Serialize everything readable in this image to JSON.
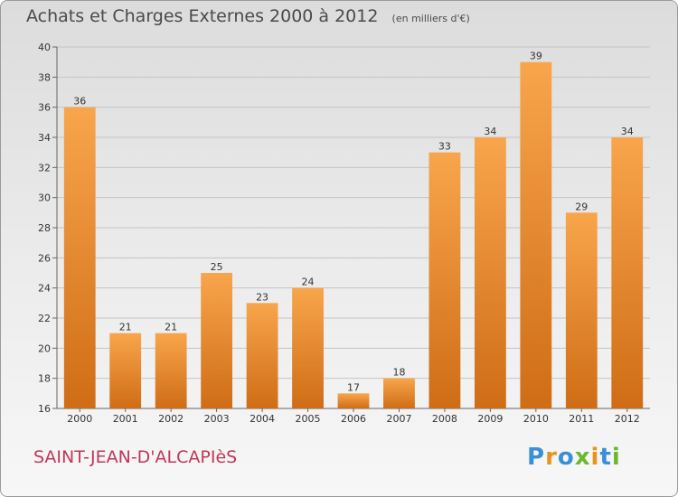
{
  "chart_data": {
    "type": "bar",
    "title": "Achats et Charges Externes 2000 à 2012",
    "unit": "(en milliers d'€)",
    "categories": [
      "2000",
      "2001",
      "2002",
      "2003",
      "2004",
      "2005",
      "2006",
      "2007",
      "2008",
      "2009",
      "2010",
      "2011",
      "2012"
    ],
    "values": [
      36,
      21,
      21,
      25,
      23,
      24,
      17,
      18,
      33,
      34,
      39,
      29,
      34
    ],
    "ylim": [
      16,
      40
    ],
    "yticks": [
      16,
      18,
      20,
      22,
      24,
      26,
      28,
      30,
      32,
      34,
      36,
      38,
      40
    ],
    "grid": true,
    "bar_color_top": "#f8a54c",
    "bar_color_bottom": "#cf6d16"
  },
  "place": "SAINT-JEAN-D'ALCAPIèS",
  "logo": {
    "letters": [
      "P",
      "r",
      "o",
      "x",
      "i",
      "t",
      "i"
    ],
    "colors": [
      "#3a8fd6",
      "#e6941e",
      "#3a8fd6",
      "#6ab82e",
      "#e6941e",
      "#3a8fd6",
      "#6ab82e"
    ]
  }
}
